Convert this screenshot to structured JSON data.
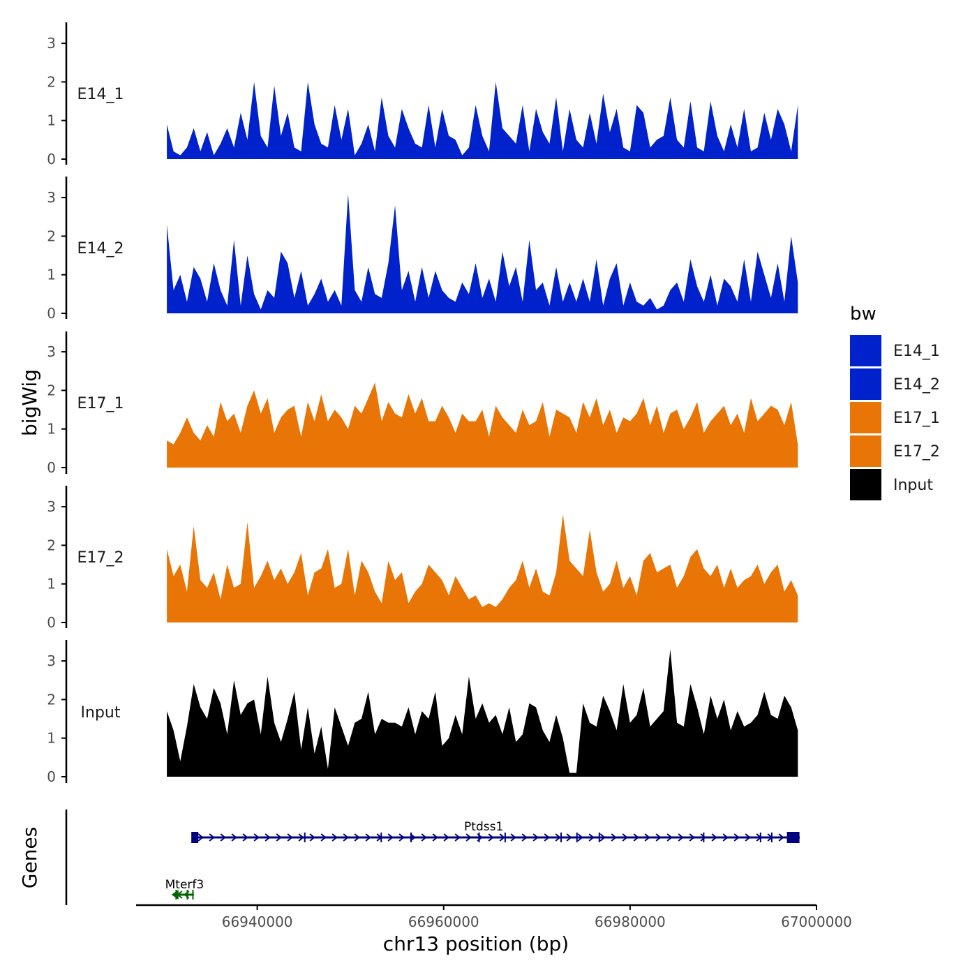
{
  "chart_data": {
    "type": "area",
    "xlabel": "chr13 position (bp)",
    "ylabel": "bigWig",
    "genes_panel_label": "Genes",
    "x_range": [
      66927000,
      67000000
    ],
    "x_ticks": [
      66940000,
      66960000,
      66980000,
      67000000
    ],
    "x_tick_labels": [
      "66940000",
      "66960000",
      "66980000",
      "67000000"
    ],
    "ylim": [
      0,
      3.5
    ],
    "y_ticks": [
      0,
      1,
      2,
      3
    ],
    "y_tick_labels": [
      "0",
      "1",
      "2",
      "3"
    ],
    "series_x_start": 66930300,
    "series_x_end": 66998000,
    "series_bin_bp": 1300,
    "series": [
      {
        "name": "E14_1",
        "color": "#0022cc",
        "values": [
          0.9,
          0.2,
          0.1,
          0.3,
          0.8,
          0.2,
          0.7,
          0.1,
          0.4,
          0.8,
          0.3,
          1.2,
          0.5,
          2.0,
          0.6,
          0.3,
          1.9,
          0.6,
          1.2,
          0.3,
          0.2,
          2.0,
          0.9,
          0.4,
          0.3,
          1.4,
          0.5,
          1.3,
          0.1,
          0.4,
          0.9,
          0.2,
          1.6,
          0.6,
          0.3,
          1.3,
          0.8,
          0.4,
          0.3,
          1.4,
          0.3,
          1.3,
          0.6,
          0.5,
          0.1,
          0.3,
          1.4,
          0.6,
          0.2,
          2.0,
          0.8,
          0.6,
          0.4,
          1.4,
          0.2,
          1.3,
          0.7,
          0.4,
          1.6,
          0.2,
          1.3,
          0.5,
          0.3,
          1.2,
          0.4,
          1.7,
          0.7,
          1.3,
          0.3,
          0.2,
          1.4,
          1.2,
          0.3,
          0.5,
          0.6,
          1.6,
          0.5,
          0.3,
          1.5,
          0.3,
          0.2,
          1.5,
          0.6,
          0.2,
          0.9,
          0.3,
          1.3,
          0.2,
          0.3,
          1.2,
          0.5,
          1.3,
          0.9,
          0.2,
          1.4
        ]
      },
      {
        "name": "E14_2",
        "color": "#0022cc",
        "values": [
          2.3,
          0.6,
          1.0,
          0.3,
          1.2,
          0.9,
          0.3,
          1.3,
          0.6,
          0.2,
          1.9,
          0.2,
          1.5,
          0.5,
          0.1,
          0.6,
          0.4,
          1.6,
          1.3,
          0.4,
          1.1,
          0.2,
          0.5,
          0.9,
          0.3,
          0.6,
          0.2,
          3.1,
          0.6,
          0.3,
          1.2,
          0.5,
          0.4,
          1.3,
          2.8,
          0.6,
          1.1,
          0.3,
          1.2,
          0.4,
          1.1,
          0.6,
          0.4,
          0.3,
          0.8,
          0.5,
          1.3,
          0.4,
          0.9,
          0.3,
          1.6,
          0.7,
          1.2,
          0.3,
          1.9,
          0.6,
          0.8,
          0.2,
          1.2,
          0.3,
          0.8,
          0.3,
          0.9,
          0.3,
          1.4,
          0.2,
          0.9,
          1.3,
          0.2,
          0.8,
          0.3,
          0.2,
          0.4,
          0.1,
          0.2,
          0.6,
          0.8,
          0.3,
          1.4,
          0.7,
          0.3,
          1.0,
          0.2,
          0.9,
          0.7,
          0.3,
          1.4,
          0.3,
          1.6,
          1.0,
          0.4,
          1.3,
          0.3,
          2.0,
          0.8
        ]
      },
      {
        "name": "E17_1",
        "color": "#e87505",
        "values": [
          0.7,
          0.6,
          0.9,
          1.3,
          0.9,
          0.7,
          1.1,
          0.8,
          1.7,
          1.2,
          1.4,
          0.9,
          1.6,
          2.0,
          1.4,
          1.8,
          0.9,
          1.3,
          1.5,
          1.6,
          0.8,
          1.7,
          1.2,
          1.9,
          1.2,
          1.5,
          1.3,
          1.0,
          1.6,
          1.4,
          1.8,
          2.2,
          1.2,
          1.7,
          1.4,
          1.3,
          1.9,
          1.4,
          1.8,
          1.2,
          1.2,
          1.6,
          1.3,
          0.9,
          1.4,
          1.2,
          1.2,
          1.5,
          0.8,
          1.6,
          1.3,
          1.1,
          0.9,
          1.5,
          1.1,
          1.2,
          1.7,
          0.8,
          1.5,
          1.4,
          1.3,
          0.9,
          1.7,
          1.3,
          1.8,
          1.1,
          1.5,
          0.9,
          1.3,
          1.2,
          1.4,
          1.8,
          1.1,
          1.6,
          0.9,
          1.4,
          1.5,
          1.0,
          1.3,
          1.7,
          0.9,
          1.2,
          1.4,
          1.6,
          1.1,
          1.4,
          0.9,
          1.8,
          1.2,
          1.4,
          1.6,
          1.5,
          1.1,
          1.7,
          0.6
        ]
      },
      {
        "name": "E17_2",
        "color": "#e87505",
        "values": [
          1.9,
          1.2,
          1.5,
          0.8,
          2.5,
          1.1,
          0.9,
          1.3,
          0.6,
          1.5,
          0.9,
          1.0,
          2.6,
          0.9,
          1.2,
          1.6,
          1.1,
          1.4,
          1.0,
          1.3,
          1.8,
          0.7,
          1.3,
          1.4,
          1.9,
          0.9,
          1.0,
          1.9,
          0.7,
          1.6,
          1.3,
          0.8,
          0.5,
          1.6,
          1.1,
          1.3,
          0.5,
          0.8,
          1.0,
          1.5,
          1.3,
          1.1,
          0.7,
          1.2,
          0.9,
          0.6,
          0.7,
          0.4,
          0.5,
          0.4,
          0.6,
          0.9,
          1.1,
          1.6,
          0.9,
          1.4,
          0.8,
          0.7,
          1.3,
          2.8,
          1.6,
          1.4,
          1.2,
          2.4,
          1.3,
          0.8,
          1.0,
          1.6,
          0.9,
          1.2,
          0.7,
          1.6,
          1.8,
          1.3,
          1.4,
          1.5,
          0.9,
          1.2,
          1.7,
          1.9,
          1.4,
          1.2,
          1.5,
          0.9,
          1.4,
          0.9,
          1.1,
          1.2,
          1.5,
          1.0,
          1.3,
          1.5,
          0.8,
          1.1,
          0.7
        ]
      },
      {
        "name": "Input",
        "color": "#000000",
        "values": [
          1.7,
          1.2,
          0.4,
          1.3,
          2.4,
          1.8,
          1.5,
          2.3,
          1.9,
          1.1,
          2.5,
          1.6,
          1.9,
          2.0,
          1.1,
          2.6,
          1.4,
          0.9,
          1.5,
          2.2,
          0.7,
          1.8,
          0.6,
          1.3,
          0.2,
          1.8,
          1.3,
          0.8,
          1.4,
          1.5,
          2.2,
          1.1,
          1.5,
          1.4,
          1.4,
          1.3,
          1.8,
          1.1,
          1.7,
          1.5,
          2.2,
          0.8,
          1.0,
          1.6,
          1.1,
          2.6,
          1.5,
          1.9,
          1.4,
          1.6,
          1.1,
          1.8,
          0.9,
          1.1,
          1.9,
          1.8,
          1.2,
          0.9,
          1.6,
          1.0,
          0.1,
          0.1,
          1.9,
          1.4,
          1.3,
          2.1,
          1.7,
          1.2,
          2.4,
          1.4,
          1.6,
          2.3,
          1.3,
          1.5,
          1.7,
          3.3,
          1.4,
          1.3,
          2.4,
          1.8,
          1.1,
          2.1,
          1.5,
          2.0,
          1.2,
          1.7,
          1.3,
          1.4,
          1.6,
          2.2,
          1.6,
          1.5,
          2.1,
          1.8,
          1.2
        ]
      }
    ],
    "legend": {
      "title": "bw",
      "entries": [
        {
          "label": "E14_1",
          "color": "#0022cc"
        },
        {
          "label": "E14_2",
          "color": "#0022cc"
        },
        {
          "label": "E17_1",
          "color": "#e87505"
        },
        {
          "label": "E17_2",
          "color": "#e87505"
        },
        {
          "label": "Input",
          "color": "#000000"
        }
      ]
    },
    "genes": [
      {
        "name": "Ptdss1",
        "strand": "+",
        "color": "#000080",
        "start": 66933300,
        "end": 66998200,
        "exons": [
          66933300,
          66945100,
          66953300,
          66956500,
          66963800,
          66966600,
          66972600,
          66974300,
          66976700,
          66987900,
          66994000,
          66995200,
          66997500
        ]
      },
      {
        "name": "Mterf3",
        "strand": "-",
        "color": "#006400",
        "start": 66931100,
        "end": 66933200,
        "exons": [
          66931300,
          66932500,
          66933100
        ]
      }
    ]
  }
}
